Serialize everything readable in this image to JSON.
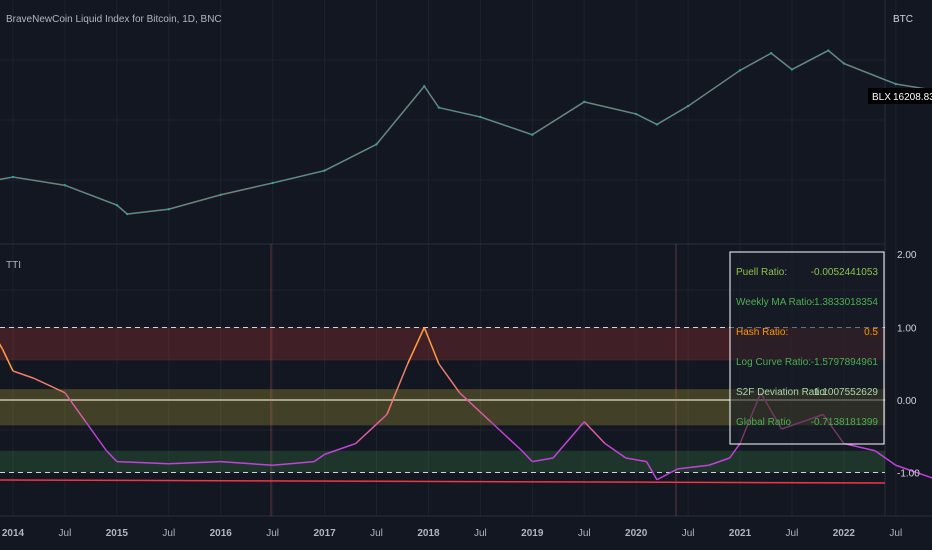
{
  "top_pane": {
    "title": "BraveNewCoin Liquid Index for Bitcoin, 1D, BNC",
    "currency": "BTC",
    "price_tag": {
      "symbol": "BLX",
      "value": "16208.83"
    }
  },
  "bottom_pane": {
    "indicator_label": "TTI",
    "y_labels": [
      "2.00",
      "1.00",
      "0.00",
      "-1.00"
    ]
  },
  "x_axis_labels": [
    "2014",
    "Jul",
    "2015",
    "Jul",
    "2016",
    "Jul",
    "2017",
    "Jul",
    "2018",
    "Jul",
    "2019",
    "Jul",
    "2020",
    "Jul",
    "2021",
    "Jul",
    "2022",
    "Jul"
  ],
  "ratio_table": [
    {
      "label": "Puell Ratio:",
      "value": "-0.0052441053",
      "color": "#8bc34a"
    },
    {
      "label": "Weekly MA Ratio:",
      "value": "-1.3833018354",
      "color": "#4caf50"
    },
    {
      "label": "Hash Ratio:",
      "value": "0.5",
      "color": "#ff9800"
    },
    {
      "label": "Log Curve Ratio:",
      "value": "-1.5797894961",
      "color": "#4caf50"
    },
    {
      "label": "S2F Deviation Ratio:",
      "value": "1.1007552629",
      "color": "#a5d6a7"
    },
    {
      "label": "Global Ratio",
      "value": "-0.7138181399",
      "color": "#4caf50"
    }
  ],
  "chart_data": [
    {
      "type": "line",
      "title": "BraveNewCoin Liquid Index for Bitcoin, 1D, BNC",
      "scale": "log",
      "x": [
        2013.8,
        2014.0,
        2014.5,
        2015.0,
        2015.1,
        2015.5,
        2016.0,
        2016.5,
        2017.0,
        2017.5,
        2017.96,
        2018.1,
        2018.5,
        2019.0,
        2019.5,
        2020.0,
        2020.2,
        2020.5,
        2021.0,
        2021.3,
        2021.5,
        2021.85,
        2022.0,
        2022.5,
        2022.9
      ],
      "values": [
        700,
        800,
        600,
        300,
        220,
        260,
        430,
        650,
        1000,
        2500,
        19000,
        9000,
        6500,
        3500,
        11000,
        7200,
        5000,
        9500,
        33000,
        60000,
        34000,
        66000,
        42000,
        20500,
        16208.83
      ],
      "color": "#26a69a"
    },
    {
      "type": "line",
      "title": "TTI",
      "ylim": [
        -1.2,
        2.1
      ],
      "bands": [
        {
          "from": 0.55,
          "to": 1.0,
          "color": "#f44336"
        },
        {
          "from": -0.35,
          "to": 0.15,
          "color": "#ffeb3b"
        },
        {
          "from": -1.0,
          "to": -0.7,
          "color": "#4caf50"
        }
      ],
      "reference_lines": [
        1.0,
        0.0,
        -1.0
      ],
      "x": [
        2013.8,
        2013.9,
        2014.0,
        2014.2,
        2014.5,
        2014.7,
        2014.9,
        2015.0,
        2015.5,
        2016.0,
        2016.5,
        2016.9,
        2017.0,
        2017.3,
        2017.6,
        2017.8,
        2017.96,
        2018.1,
        2018.3,
        2018.6,
        2018.9,
        2019.0,
        2019.2,
        2019.5,
        2019.7,
        2019.9,
        2020.1,
        2020.2,
        2020.4,
        2020.7,
        2020.9,
        2021.0,
        2021.2,
        2021.4,
        2021.6,
        2021.8,
        2022.0,
        2022.3,
        2022.5,
        2022.9
      ],
      "values": [
        0.95,
        0.7,
        0.4,
        0.3,
        0.1,
        -0.3,
        -0.7,
        -0.85,
        -0.88,
        -0.85,
        -0.9,
        -0.85,
        -0.75,
        -0.6,
        -0.2,
        0.5,
        1.0,
        0.5,
        0.1,
        -0.3,
        -0.7,
        -0.85,
        -0.8,
        -0.3,
        -0.6,
        -0.8,
        -0.85,
        -1.1,
        -0.95,
        -0.9,
        -0.8,
        -0.6,
        0.1,
        -0.4,
        -0.3,
        -0.2,
        -0.6,
        -0.7,
        -0.9,
        -1.1
      ]
    }
  ]
}
